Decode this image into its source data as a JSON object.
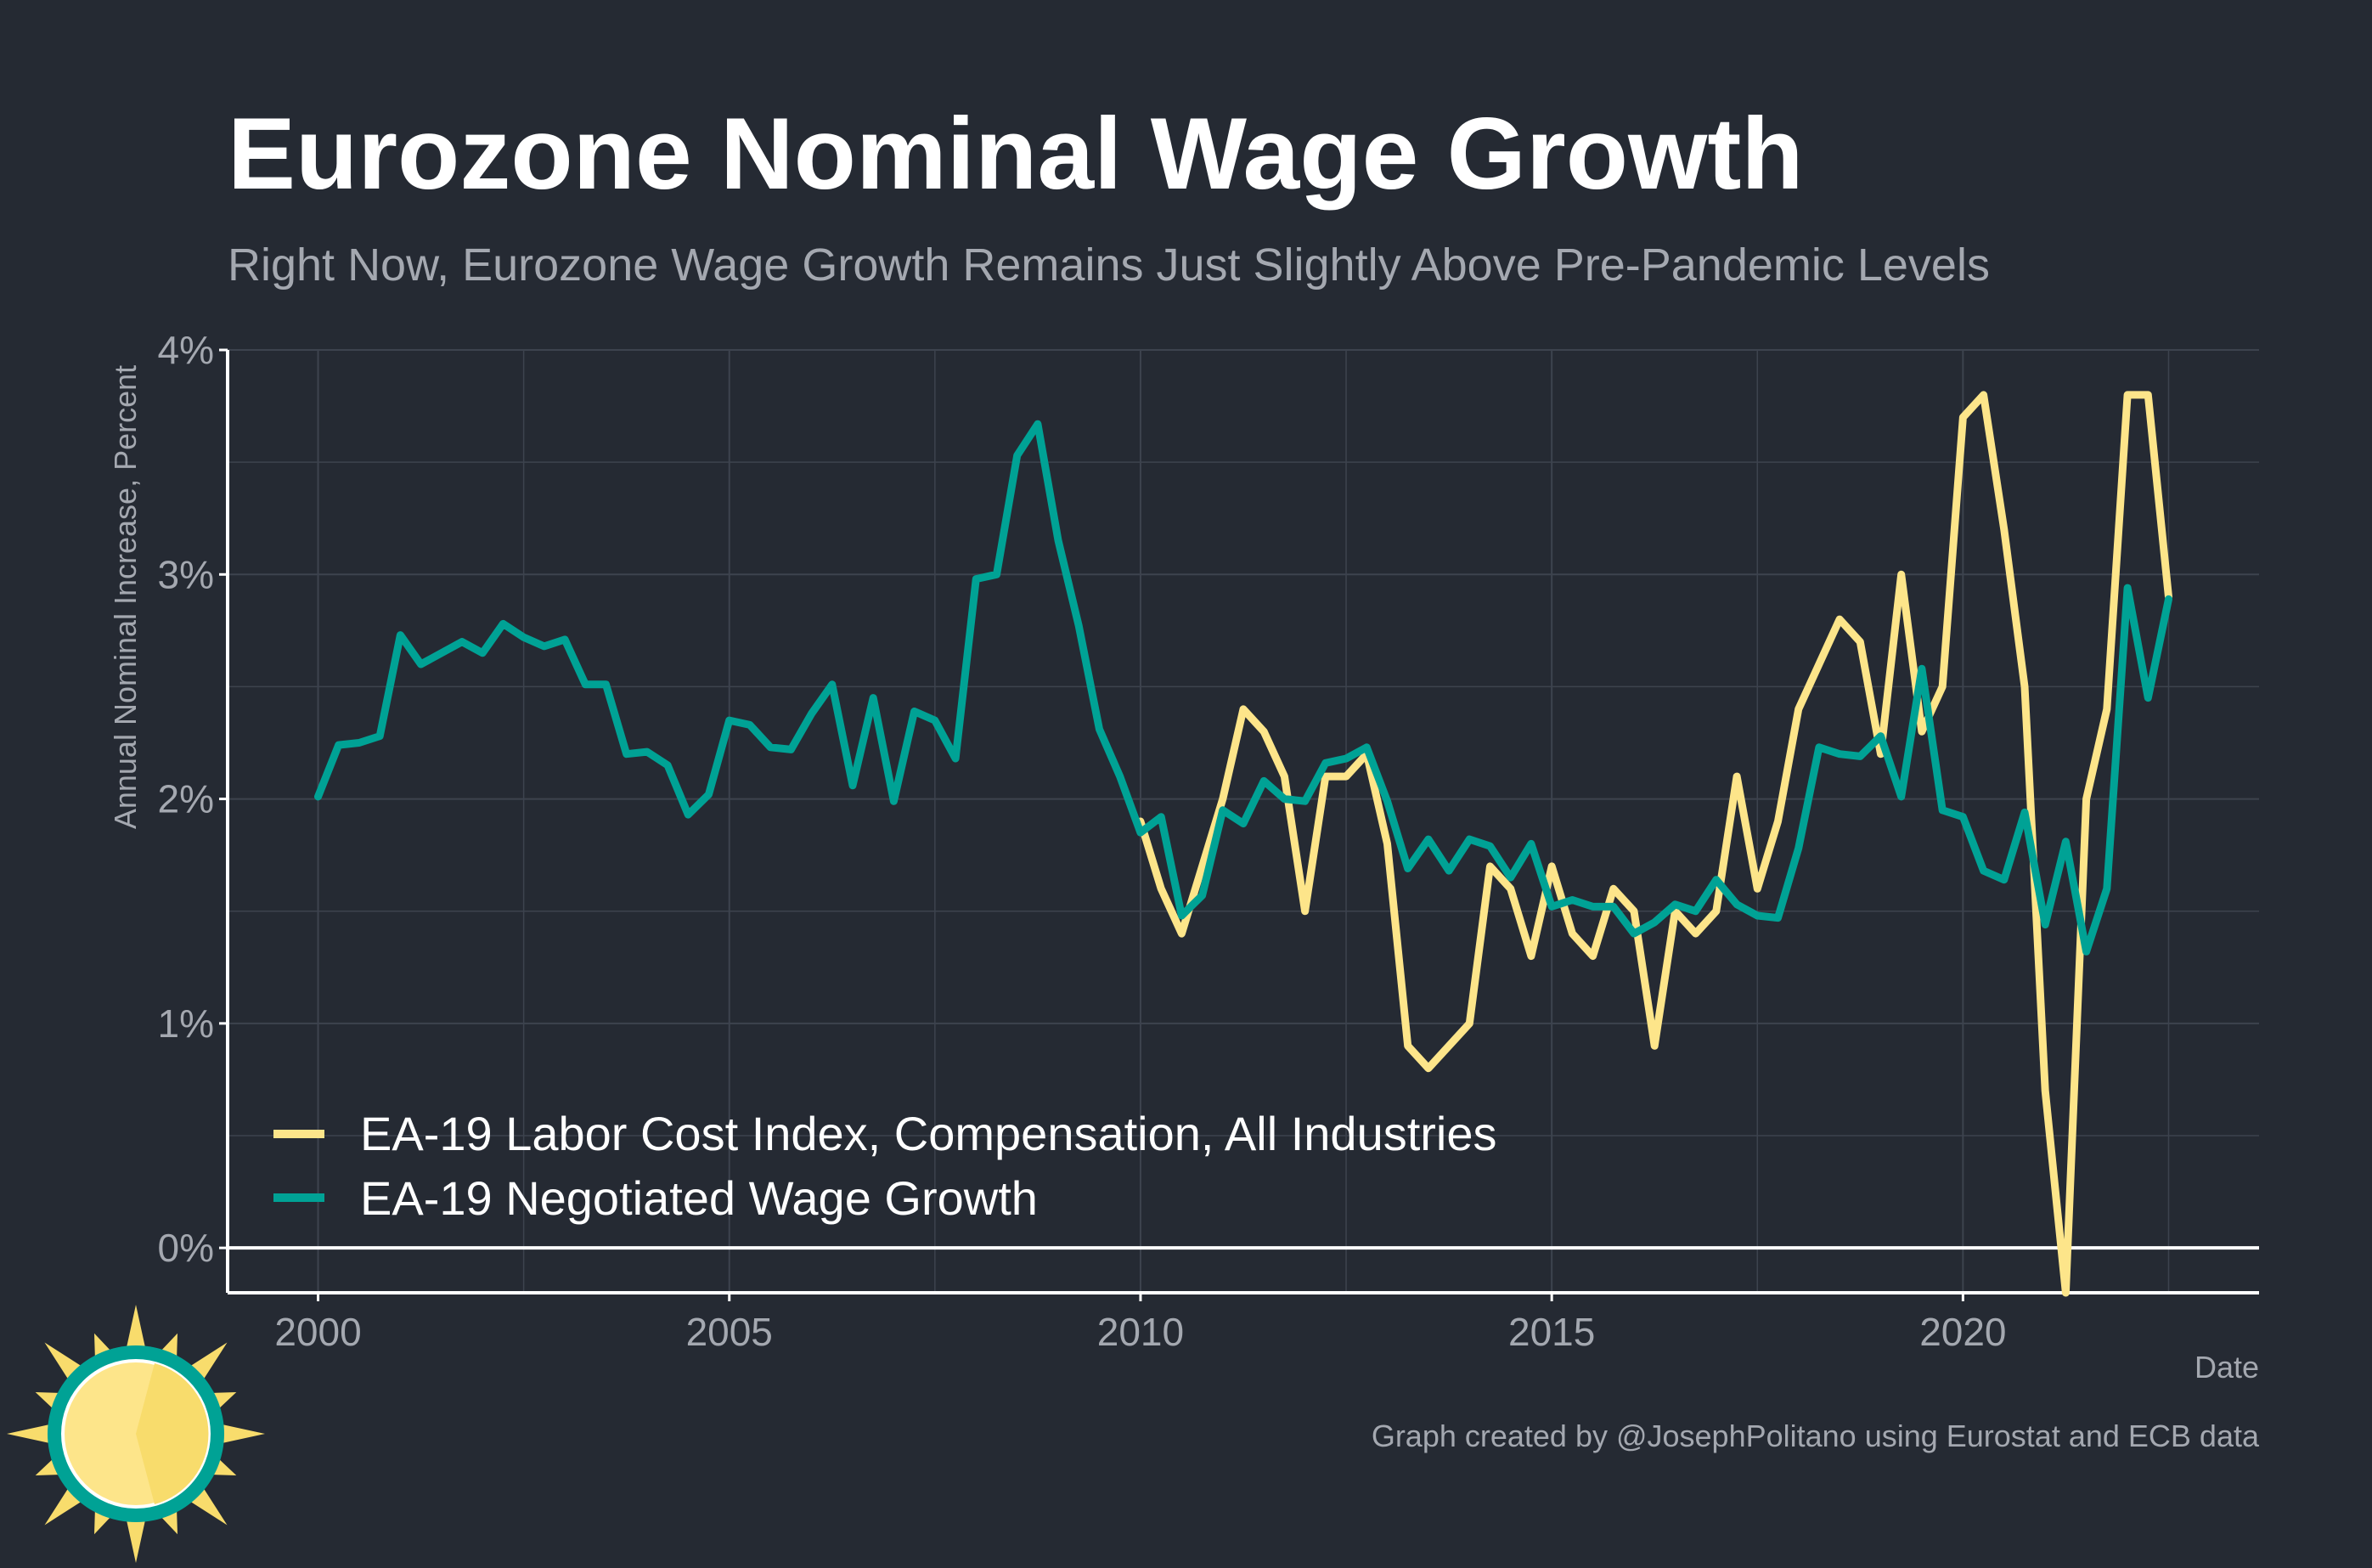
{
  "colors": {
    "background": "#252a33",
    "grid": "#3d434e",
    "axis": "#ffffff",
    "labor_cost": "#fde58a",
    "negotiated": "#00a295",
    "sun_yellow": "#f8dc6c",
    "sun_light": "#fde58a",
    "sun_ring": "#00a295"
  },
  "chart_data": {
    "type": "line",
    "title": "Eurozone Nominal Wage Growth",
    "subtitle": "Right Now, Eurozone Wage Growth Remains Just Slightly Above Pre-Pandemic Levels",
    "xlabel": "Date",
    "ylabel": "Annual Nominal Increase, Percent",
    "xlim": [
      1998.9,
      2023.6
    ],
    "ylim": [
      -0.2,
      4.0
    ],
    "x_ticks": [
      2000,
      2005,
      2010,
      2015,
      2020
    ],
    "x_tick_labels": [
      "2000",
      "2005",
      "2010",
      "2015",
      "2020"
    ],
    "y_ticks": [
      0,
      1,
      2,
      3,
      4
    ],
    "y_tick_labels": [
      "0%",
      "1%",
      "2%",
      "3%",
      "4%"
    ],
    "grid": true,
    "legend_position": "bottom-left",
    "caption": "Graph created by @JosephPolitano using Eurostat and ECB data",
    "series": [
      {
        "name": "EA-19 Labor Cost Index, Compensation, All Industries",
        "color": "#fde58a",
        "x": [
          2010.0,
          2010.25,
          2010.5,
          2010.75,
          2011.0,
          2011.25,
          2011.5,
          2011.75,
          2012.0,
          2012.25,
          2012.5,
          2012.75,
          2013.0,
          2013.25,
          2013.5,
          2013.75,
          2014.0,
          2014.25,
          2014.5,
          2014.75,
          2015.0,
          2015.25,
          2015.5,
          2015.75,
          2016.0,
          2016.25,
          2016.5,
          2016.75,
          2017.0,
          2017.25,
          2017.5,
          2017.75,
          2018.0,
          2018.25,
          2018.5,
          2018.75,
          2019.0,
          2019.25,
          2019.5,
          2019.75,
          2020.0,
          2020.25,
          2020.5,
          2020.75,
          2021.0,
          2021.25,
          2021.5,
          2021.75,
          2022.0,
          2022.25,
          2022.5
        ],
        "values": [
          1.9,
          1.6,
          1.4,
          1.7,
          2.0,
          2.4,
          2.3,
          2.1,
          1.5,
          2.1,
          2.1,
          2.2,
          1.8,
          0.9,
          0.8,
          0.9,
          1.0,
          1.7,
          1.6,
          1.3,
          1.7,
          1.4,
          1.3,
          1.6,
          1.5,
          0.9,
          1.5,
          1.4,
          1.5,
          2.1,
          1.6,
          1.9,
          2.4,
          2.6,
          2.8,
          2.7,
          2.2,
          3.0,
          2.3,
          2.5,
          3.7,
          3.8,
          3.2,
          2.5,
          0.7,
          -0.2,
          2.0,
          2.4,
          3.8,
          3.8,
          2.9
        ]
      },
      {
        "name": "EA-19 Negotiated Wage Growth",
        "color": "#00a295",
        "x": [
          2000.0,
          2000.25,
          2000.5,
          2000.75,
          2001.0,
          2001.25,
          2001.5,
          2001.75,
          2002.0,
          2002.25,
          2002.5,
          2002.75,
          2003.0,
          2003.25,
          2003.5,
          2003.75,
          2004.0,
          2004.25,
          2004.5,
          2004.75,
          2005.0,
          2005.25,
          2005.5,
          2005.75,
          2006.0,
          2006.25,
          2006.5,
          2006.75,
          2007.0,
          2007.25,
          2007.5,
          2007.75,
          2008.0,
          2008.25,
          2008.5,
          2008.75,
          2009.0,
          2009.25,
          2009.5,
          2009.75,
          2010.0,
          2010.25,
          2010.5,
          2010.75,
          2011.0,
          2011.25,
          2011.5,
          2011.75,
          2012.0,
          2012.25,
          2012.5,
          2012.75,
          2013.0,
          2013.25,
          2013.5,
          2013.75,
          2014.0,
          2014.25,
          2014.5,
          2014.75,
          2015.0,
          2015.25,
          2015.5,
          2015.75,
          2016.0,
          2016.25,
          2016.5,
          2016.75,
          2017.0,
          2017.25,
          2017.5,
          2017.75,
          2018.0,
          2018.25,
          2018.5,
          2018.75,
          2019.0,
          2019.25,
          2019.5,
          2019.75,
          2020.0,
          2020.25,
          2020.5,
          2020.75,
          2021.0,
          2021.25,
          2021.5,
          2021.75,
          2022.0,
          2022.25,
          2022.5
        ],
        "values": [
          2.01,
          2.24,
          2.25,
          2.28,
          2.73,
          2.6,
          2.65,
          2.7,
          2.65,
          2.78,
          2.72,
          2.68,
          2.71,
          2.51,
          2.51,
          2.2,
          2.21,
          2.15,
          1.93,
          2.02,
          2.35,
          2.33,
          2.23,
          2.22,
          2.38,
          2.51,
          2.06,
          2.45,
          1.99,
          2.39,
          2.35,
          2.18,
          2.98,
          3.0,
          3.53,
          3.67,
          3.15,
          2.77,
          2.31,
          2.1,
          1.85,
          1.92,
          1.48,
          1.57,
          1.95,
          1.89,
          2.08,
          2.0,
          1.99,
          2.16,
          2.18,
          2.23,
          1.99,
          1.69,
          1.82,
          1.68,
          1.82,
          1.79,
          1.65,
          1.8,
          1.52,
          1.55,
          1.52,
          1.52,
          1.4,
          1.45,
          1.53,
          1.5,
          1.64,
          1.53,
          1.48,
          1.47,
          1.78,
          2.23,
          2.2,
          2.19,
          2.28,
          2.01,
          2.58,
          1.95,
          1.92,
          1.68,
          1.64,
          1.94,
          1.44,
          1.81,
          1.32,
          1.6,
          2.94,
          2.45,
          2.89
        ]
      }
    ]
  }
}
